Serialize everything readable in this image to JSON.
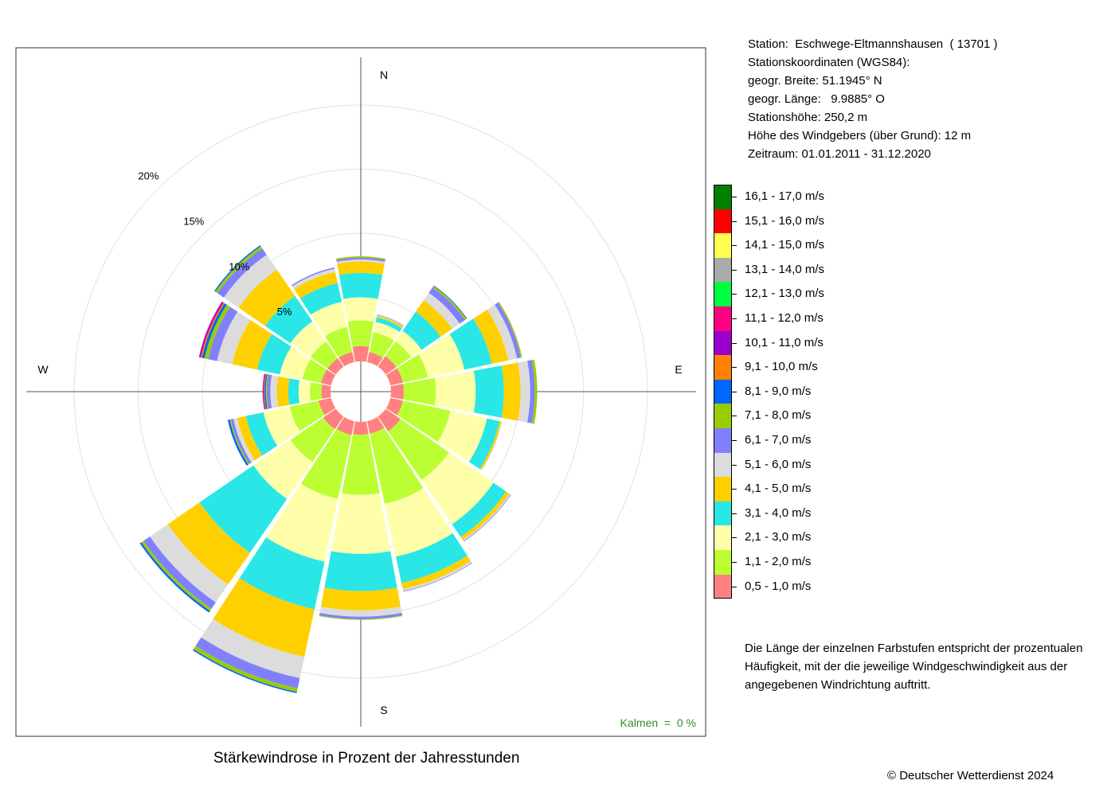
{
  "chart_data": {
    "type": "windrose",
    "caption": "Stärkewindrose in Prozent der Jahresstunden",
    "calm_label": "Kalmen  =  0 %",
    "directions": [
      "N",
      "NNE",
      "NE",
      "ENE",
      "E",
      "ESE",
      "SE",
      "SSE",
      "S",
      "SSW",
      "SW",
      "WSW",
      "W",
      "WNW",
      "NW",
      "NNW"
    ],
    "compass_labels": [
      "N",
      "E",
      "S",
      "W"
    ],
    "ring_labels": [
      "5%",
      "10%",
      "15%",
      "20%"
    ],
    "rings": [
      5,
      10,
      15,
      20
    ],
    "colors": [
      "#FF8080",
      "#BBFF33",
      "#FFFFAA",
      "#2AE6E6",
      "#FFD000",
      "#DCDCDC",
      "#8080FF",
      "#99CC00",
      "#0066FF",
      "#FF8000",
      "#9900CC",
      "#FF0080",
      "#00FF40",
      "#AAAAAA",
      "#FFFF50",
      "#FF0000",
      "#008000"
    ],
    "speed_classes": [
      "0,5 - 1,0 m/s",
      "1,1 - 2,0 m/s",
      "2,1 - 3,0 m/s",
      "3,1 - 4,0 m/s",
      "4,1 - 5,0 m/s",
      "5,1 - 6,0 m/s",
      "6,1 - 7,0 m/s",
      "7,1 - 8,0 m/s",
      "8,1 - 9,0 m/s",
      "9,1 - 10,0 m/s",
      "10,1 - 11,0 m/s",
      "11,1 - 12,0 m/s",
      "12,1 - 13,0 m/s",
      "13,1 - 14,0 m/s",
      "14,1 - 15,0 m/s",
      "15,1 - 16,0 m/s",
      "16,1 - 17,0 m/s"
    ],
    "cumulative": [
      [
        1.2,
        3.2,
        5.0,
        6.9,
        7.8,
        7.95,
        8.1,
        8.2
      ],
      [
        0.8,
        2.4,
        3.2,
        3.55,
        3.68,
        3.74,
        3.78,
        3.8
      ],
      [
        1.0,
        2.4,
        3.4,
        5.2,
        6.3,
        7.0,
        7.5,
        7.65,
        7.7
      ],
      [
        1.0,
        3.0,
        5.9,
        8.1,
        9.4,
        10.1,
        10.4,
        10.5
      ],
      [
        1.0,
        3.5,
        6.6,
        8.8,
        10.1,
        10.85,
        11.2,
        11.4
      ],
      [
        1.0,
        4.8,
        7.7,
        8.7,
        8.85,
        8.9
      ],
      [
        1.4,
        6.0,
        10.2,
        11.4,
        11.7,
        11.8,
        11.85
      ],
      [
        1.0,
        6.6,
        10.8,
        12.9,
        13.4,
        13.55,
        13.6
      ],
      [
        1.0,
        5.7,
        10.3,
        13.2,
        14.7,
        15.2,
        15.4,
        15.45
      ],
      [
        1.1,
        6.2,
        11.2,
        15.0,
        18.8,
        20.5,
        21.3,
        21.6,
        21.7
      ],
      [
        1.2,
        4.3,
        7.8,
        12.9,
        15.9,
        17.6,
        18.2,
        18.4,
        18.55
      ],
      [
        1.0,
        3.3,
        5.4,
        6.8,
        7.5,
        7.8,
        8.0,
        8.1,
        8.25
      ],
      [
        0.7,
        1.6,
        2.5,
        3.3,
        4.2,
        4.7,
        4.95,
        5.05,
        5.15,
        5.2,
        5.25,
        5.3
      ],
      [
        0.8,
        2.3,
        4.1,
        5.9,
        7.9,
        9.1,
        9.8,
        10.1,
        10.3,
        10.4,
        10.5,
        10.55
      ],
      [
        0.8,
        2.4,
        4.3,
        6.7,
        9.2,
        10.6,
        11.2,
        11.4,
        11.5
      ],
      [
        0.8,
        2.8,
        4.8,
        6.3,
        7.2,
        7.45,
        7.55
      ]
    ]
  },
  "station": {
    "lines": [
      "Station:  Eschwege-Eltmannshausen  ( 13701 )",
      "Stationskoordinaten (WGS84):",
      "geogr. Breite: 51.1945° N",
      "geogr. Länge:   9.9885° O",
      "Stationshöhe: 250,2 m",
      "Höhe des Windgebers (über Grund): 12 m",
      "Zeitraum: 01.01.2011 - 31.12.2020"
    ]
  },
  "note": "Die Länge der einzelnen Farbstufen entspricht der prozentualen Häufigkeit, mit der die jeweilige Windgeschwindigkeit aus der angegebenen Windrichtung auftritt.",
  "copyright": "© Deutscher Wetterdienst  2024"
}
